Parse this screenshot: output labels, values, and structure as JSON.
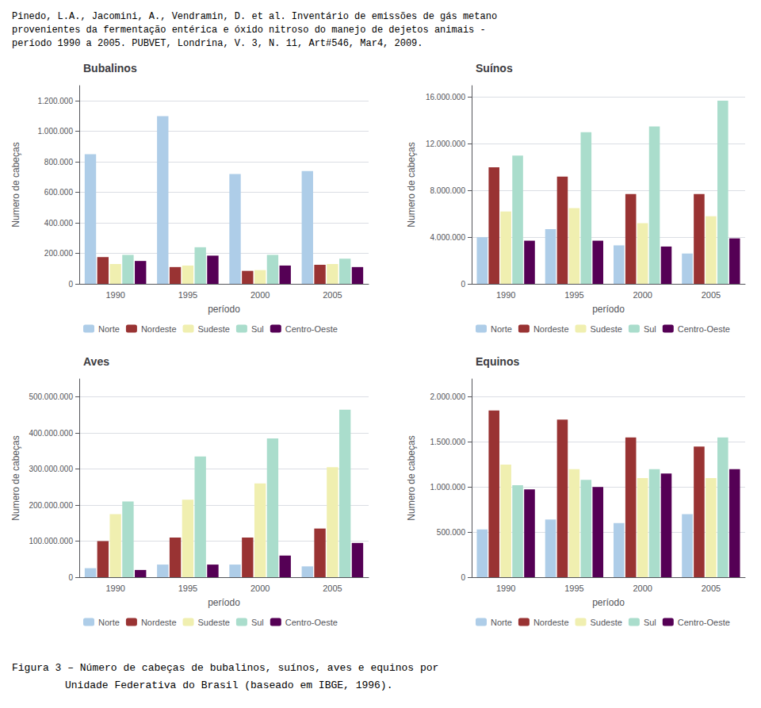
{
  "header": [
    "Pinedo, L.A., Jacomini, A., Vendramin, D. et al. Inventário de emissões de gás metano",
    "provenientes da fermentação entérica e óxido nitroso do manejo de dejetos animais -",
    "período 1990 a 2005. PUBVET, Londrina, V. 3, N. 11, Art#546, Mar4, 2009."
  ],
  "footer": [
    "Figura 3 – Número de cabeças de bubalinos, suínos, aves e equinos por",
    "Unidade Federativa do Brasil (baseado em IBGE, 1996)."
  ],
  "chart_data": [
    {
      "type": "bar",
      "title": "Bubalinos",
      "xlabel": "período",
      "ylabel": "Numero de cabeças",
      "categories": [
        "1990",
        "1995",
        "2000",
        "2005"
      ],
      "series": [
        {
          "name": "Norte",
          "color": "#AECDE8",
          "values": [
            850000,
            1100000,
            720000,
            740000
          ]
        },
        {
          "name": "Nordeste",
          "color": "#993333",
          "values": [
            175000,
            110000,
            85000,
            125000
          ]
        },
        {
          "name": "Sudeste",
          "color": "#F0EFB0",
          "values": [
            130000,
            120000,
            90000,
            130000
          ]
        },
        {
          "name": "Sul",
          "color": "#AADDCC",
          "values": [
            190000,
            240000,
            190000,
            165000
          ]
        },
        {
          "name": "Centro-Oeste",
          "color": "#550055",
          "values": [
            150000,
            185000,
            120000,
            110000
          ]
        }
      ],
      "ylim": [
        0,
        1300000
      ],
      "yticks": [
        0,
        {
          "value": 200000,
          "label": "200.000"
        },
        {
          "value": 400000,
          "label": "400.000"
        },
        {
          "value": 600000,
          "label": "600.000"
        },
        {
          "value": 800000,
          "label": "800.000"
        },
        {
          "value": 1000000,
          "label": "1.000.000"
        },
        {
          "value": 1200000,
          "label": "1.200.000"
        }
      ],
      "grid": true,
      "legend": "bottom"
    },
    {
      "type": "bar",
      "title": "Suínos",
      "xlabel": "período",
      "ylabel": "Numero de cabeças",
      "categories": [
        "1990",
        "1995",
        "2000",
        "2005"
      ],
      "series": [
        {
          "name": "Norte",
          "color": "#AECDE8",
          "values": [
            4000000,
            4700000,
            3300000,
            2600000
          ]
        },
        {
          "name": "Nordeste",
          "color": "#993333",
          "values": [
            10000000,
            9200000,
            7700000,
            7700000
          ]
        },
        {
          "name": "Sudeste",
          "color": "#F0EFB0",
          "values": [
            6200000,
            6500000,
            5200000,
            5800000
          ]
        },
        {
          "name": "Sul",
          "color": "#AADDCC",
          "values": [
            11000000,
            13000000,
            13500000,
            15700000
          ]
        },
        {
          "name": "Centro-Oeste",
          "color": "#550055",
          "values": [
            3700000,
            3700000,
            3200000,
            3900000
          ]
        }
      ],
      "ylim": [
        0,
        17000000
      ],
      "yticks": [
        0,
        {
          "value": 4000000,
          "label": "4.000.000"
        },
        {
          "value": 8000000,
          "label": "8.000.000"
        },
        {
          "value": 12000000,
          "label": "12.000.000"
        },
        {
          "value": 16000000,
          "label": "16.000.000"
        }
      ],
      "grid": true,
      "legend": "bottom"
    },
    {
      "type": "bar",
      "title": "Aves",
      "xlabel": "período",
      "ylabel": "Numero de cabeças",
      "categories": [
        "1990",
        "1995",
        "2000",
        "2005"
      ],
      "series": [
        {
          "name": "Norte",
          "color": "#AECDE8",
          "values": [
            25000000,
            35000000,
            35000000,
            30000000
          ]
        },
        {
          "name": "Nordeste",
          "color": "#993333",
          "values": [
            100000000,
            110000000,
            110000000,
            135000000
          ]
        },
        {
          "name": "Sudeste",
          "color": "#F0EFB0",
          "values": [
            175000000,
            215000000,
            260000000,
            305000000
          ]
        },
        {
          "name": "Sul",
          "color": "#AADDCC",
          "values": [
            210000000,
            335000000,
            385000000,
            465000000
          ]
        },
        {
          "name": "Centro-Oeste",
          "color": "#550055",
          "values": [
            20000000,
            35000000,
            60000000,
            95000000
          ]
        }
      ],
      "ylim": [
        0,
        550000000
      ],
      "yticks": [
        0,
        {
          "value": 100000000,
          "label": "100.000.000"
        },
        {
          "value": 200000000,
          "label": "200.000.000"
        },
        {
          "value": 300000000,
          "label": "300.000.000"
        },
        {
          "value": 400000000,
          "label": "400.000.000"
        },
        {
          "value": 500000000,
          "label": "500.000.000"
        }
      ],
      "grid": true,
      "legend": "bottom"
    },
    {
      "type": "bar",
      "title": "Equinos",
      "xlabel": "período",
      "ylabel": "Numero de cabeças",
      "categories": [
        "1990",
        "1995",
        "2000",
        "2005"
      ],
      "series": [
        {
          "name": "Norte",
          "color": "#AECDE8",
          "values": [
            530000,
            640000,
            600000,
            700000
          ]
        },
        {
          "name": "Nordeste",
          "color": "#993333",
          "values": [
            1850000,
            1750000,
            1550000,
            1450000
          ]
        },
        {
          "name": "Sudeste",
          "color": "#F0EFB0",
          "values": [
            1250000,
            1200000,
            1100000,
            1100000
          ]
        },
        {
          "name": "Sul",
          "color": "#AADDCC",
          "values": [
            1020000,
            1080000,
            1200000,
            1550000
          ]
        },
        {
          "name": "Centro-Oeste",
          "color": "#550055",
          "values": [
            975000,
            1000000,
            1150000,
            1200000
          ]
        }
      ],
      "ylim": [
        0,
        2200000
      ],
      "yticks": [
        0,
        {
          "value": 500000,
          "label": "500.000"
        },
        {
          "value": 1000000,
          "label": "1.000.000"
        },
        {
          "value": 1500000,
          "label": "1.500.000"
        },
        {
          "value": 2000000,
          "label": "2.000.000"
        }
      ],
      "grid": true,
      "legend": "bottom"
    }
  ]
}
